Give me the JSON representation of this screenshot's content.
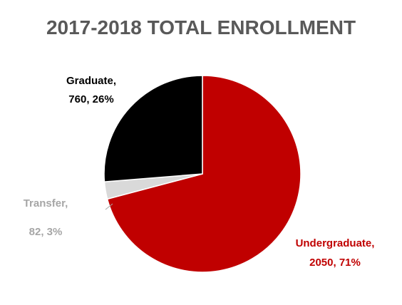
{
  "chart_data": {
    "type": "pie",
    "title": "2017-2018 TOTAL ENROLLMENT",
    "slices": [
      {
        "name": "Undergraduate",
        "value": 2050,
        "percent": "71%",
        "label_line1": "Undergraduate,",
        "label_line2": "2050, 71%",
        "color": "#c00000",
        "label_color": "#c00000"
      },
      {
        "name": "Transfer",
        "value": 82,
        "percent": "3%",
        "label_line1": "Transfer,",
        "label_line2": "82,  3%",
        "color": "#d9d9d9",
        "label_color": "#a6a6a6"
      },
      {
        "name": "Graduate",
        "value": 760,
        "percent": "26%",
        "label_line1": "Graduate,",
        "label_line2": "760, 26%",
        "color": "#000000",
        "label_color": "#000000"
      }
    ]
  }
}
